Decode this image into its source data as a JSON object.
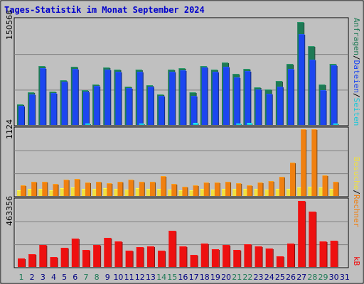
{
  "title": "Tages-Statistik im Monat September 2024",
  "colors": {
    "background": "#c0c0c0",
    "border": "#000000",
    "title": "#0000cc",
    "anfragen": "#1e7a55",
    "dateien": "#1c46f0",
    "seiten": "#18c8d8",
    "besuche": "#f0e040",
    "rechner": "#f08010",
    "kb": "#ee1010",
    "weekend_day": "#1e7a55",
    "weekday": "#000080"
  },
  "legend": {
    "top": [
      {
        "text": "Anfragen",
        "color": "#1e7a55"
      },
      {
        "text": "/",
        "color": "#000000"
      },
      {
        "text": "Dateien",
        "color": "#1c46f0"
      },
      {
        "text": "/",
        "color": "#000000"
      },
      {
        "text": "Seiten",
        "color": "#18c8d8"
      }
    ],
    "middle": [
      {
        "text": "Besuche",
        "color": "#f0e040"
      },
      {
        "text": "/",
        "color": "#000000"
      },
      {
        "text": "Rechner",
        "color": "#f08010"
      }
    ],
    "bottom": [
      {
        "text": "kB",
        "color": "#ee1010"
      }
    ]
  },
  "chart_data": [
    {
      "type": "bar",
      "panel": "top",
      "ymax_label": "150568",
      "ylim": [
        0,
        150568
      ],
      "categories": [
        "1",
        "2",
        "3",
        "4",
        "5",
        "6",
        "7",
        "8",
        "9",
        "10",
        "11",
        "12",
        "13",
        "14",
        "15",
        "16",
        "17",
        "18",
        "19",
        "20",
        "21",
        "22",
        "23",
        "24",
        "25",
        "26",
        "27",
        "28",
        "29",
        "30",
        "31"
      ],
      "series": [
        {
          "name": "Anfragen",
          "values": [
            29000,
            47000,
            84000,
            48000,
            64000,
            83000,
            50000,
            58000,
            82000,
            79000,
            55000,
            79000,
            57000,
            44000,
            79000,
            81000,
            47000,
            84000,
            79000,
            90000,
            73000,
            80000,
            54000,
            51000,
            63000,
            88000,
            148000,
            113000,
            58000,
            88000,
            0
          ]
        },
        {
          "name": "Dateien",
          "values": [
            27000,
            44000,
            81000,
            46000,
            62000,
            80000,
            48000,
            56000,
            79000,
            76000,
            53000,
            76000,
            55000,
            42000,
            76000,
            78000,
            42000,
            82000,
            76000,
            83000,
            68000,
            77000,
            51000,
            45000,
            55000,
            80000,
            130000,
            94000,
            50000,
            85000,
            0
          ]
        },
        {
          "name": "Seiten",
          "values": [
            0,
            0,
            0,
            0,
            0,
            0,
            2000,
            0,
            0,
            0,
            0,
            2000,
            0,
            0,
            0,
            0,
            3000,
            0,
            0,
            0,
            2000,
            3000,
            0,
            0,
            0,
            0,
            0,
            0,
            0,
            2000,
            0
          ]
        }
      ]
    },
    {
      "type": "bar",
      "panel": "middle",
      "ymax_label": "1124",
      "ylim": [
        0,
        1124
      ],
      "categories": [
        "1",
        "2",
        "3",
        "4",
        "5",
        "6",
        "7",
        "8",
        "9",
        "10",
        "11",
        "12",
        "13",
        "14",
        "15",
        "16",
        "17",
        "18",
        "19",
        "20",
        "21",
        "22",
        "23",
        "24",
        "25",
        "26",
        "27",
        "28",
        "29",
        "30",
        "31"
      ],
      "series": [
        {
          "name": "Besuche",
          "values": [
            90,
            125,
            125,
            90,
            130,
            140,
            125,
            115,
            130,
            115,
            110,
            130,
            115,
            115,
            105,
            90,
            90,
            120,
            110,
            115,
            115,
            120,
            120,
            110,
            120,
            120,
            140,
            155,
            140,
            125,
            0
          ]
        },
        {
          "name": "Rechner",
          "values": [
            175,
            240,
            240,
            200,
            270,
            290,
            225,
            240,
            220,
            240,
            275,
            235,
            245,
            330,
            200,
            150,
            185,
            225,
            225,
            235,
            210,
            175,
            230,
            250,
            320,
            560,
            1124,
            1124,
            350,
            245,
            0
          ]
        }
      ]
    },
    {
      "type": "bar",
      "panel": "bottom",
      "ymax_label": "463356",
      "ylim": [
        0,
        463356
      ],
      "categories": [
        "1",
        "2",
        "3",
        "4",
        "5",
        "6",
        "7",
        "8",
        "9",
        "10",
        "11",
        "12",
        "13",
        "14",
        "15",
        "16",
        "17",
        "18",
        "19",
        "20",
        "21",
        "22",
        "23",
        "24",
        "25",
        "26",
        "27",
        "28",
        "29",
        "30",
        "31"
      ],
      "series": [
        {
          "name": "kB",
          "values": [
            60000,
            90000,
            155000,
            70000,
            135000,
            195000,
            120000,
            155000,
            200000,
            175000,
            112000,
            140000,
            142000,
            115000,
            250000,
            143000,
            85000,
            165000,
            125000,
            155000,
            120000,
            158000,
            145000,
            130000,
            75000,
            165000,
            460000,
            385000,
            175000,
            180000,
            0
          ]
        }
      ]
    }
  ],
  "days": [
    {
      "label": "1",
      "weekend": true
    },
    {
      "label": "2",
      "weekend": false
    },
    {
      "label": "3",
      "weekend": false
    },
    {
      "label": "4",
      "weekend": false
    },
    {
      "label": "5",
      "weekend": false
    },
    {
      "label": "6",
      "weekend": false
    },
    {
      "label": "7",
      "weekend": true
    },
    {
      "label": "8",
      "weekend": true
    },
    {
      "label": "9",
      "weekend": false
    },
    {
      "label": "10",
      "weekend": false
    },
    {
      "label": "11",
      "weekend": false
    },
    {
      "label": "12",
      "weekend": false
    },
    {
      "label": "13",
      "weekend": false
    },
    {
      "label": "14",
      "weekend": true
    },
    {
      "label": "15",
      "weekend": true
    },
    {
      "label": "16",
      "weekend": false
    },
    {
      "label": "17",
      "weekend": false
    },
    {
      "label": "18",
      "weekend": false
    },
    {
      "label": "19",
      "weekend": false
    },
    {
      "label": "20",
      "weekend": false
    },
    {
      "label": "21",
      "weekend": true
    },
    {
      "label": "22",
      "weekend": true
    },
    {
      "label": "23",
      "weekend": false
    },
    {
      "label": "24",
      "weekend": false
    },
    {
      "label": "25",
      "weekend": false
    },
    {
      "label": "26",
      "weekend": false
    },
    {
      "label": "27",
      "weekend": false
    },
    {
      "label": "28",
      "weekend": true
    },
    {
      "label": "29",
      "weekend": true
    },
    {
      "label": "30",
      "weekend": false
    },
    {
      "label": "31",
      "weekend": false
    }
  ]
}
